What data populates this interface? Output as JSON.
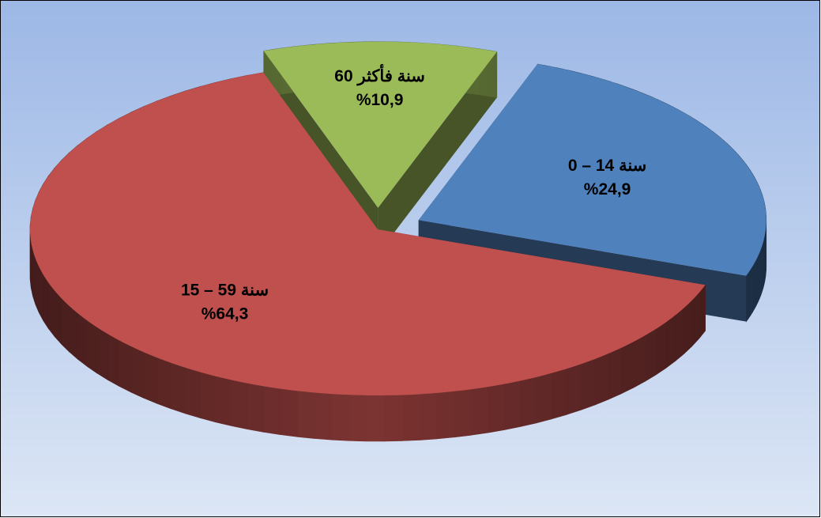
{
  "chart_data": {
    "type": "pie",
    "categories": [
      "0 – 14 سنة",
      "15 – 59 سنة",
      "60 سنة فأكثر"
    ],
    "values": [
      24.9,
      64.3,
      10.9
    ],
    "value_labels": [
      "%24,9",
      "%64,3",
      "%10,9"
    ],
    "colors": [
      "#4f81bd",
      "#c0504d",
      "#9bbb59"
    ]
  }
}
